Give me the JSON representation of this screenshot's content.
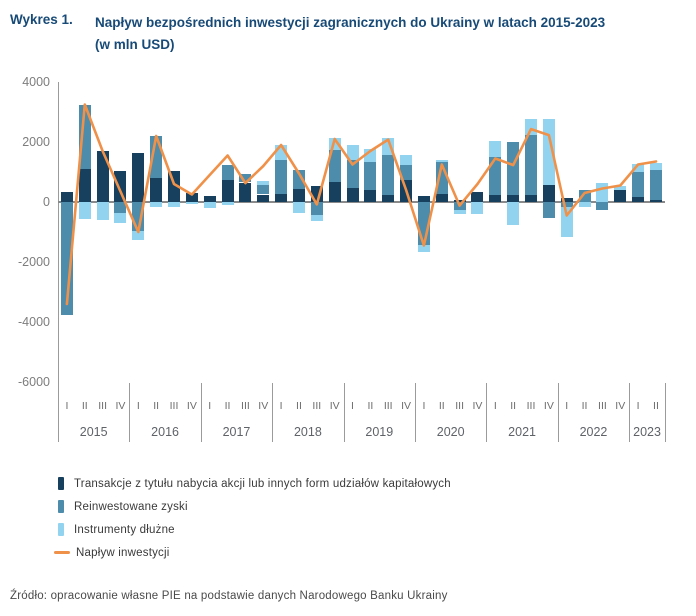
{
  "header": {
    "label": "Wykres 1.",
    "title": "Napływ bezpośrednich inwestycji zagranicznych do Ukrainy w latach 2015-2023",
    "subtitle": "(w mln USD)"
  },
  "source": {
    "text": "Źródło: opracowanie własne PIE na podstawie danych Narodowego Banku Ukrainy"
  },
  "chart_data": {
    "type": "bar",
    "subtype": "stacked-bars-with-line",
    "title": "Napływ bezpośrednich inwestycji zagranicznych do Ukrainy w latach 2015-2023 (w mln USD)",
    "ylabel": "mln USD",
    "ylim": [
      -6000,
      4000
    ],
    "y_ticks": [
      4000,
      2000,
      0,
      -2000,
      -4000,
      -6000
    ],
    "grid": false,
    "legend_position": "bottom",
    "years": [
      {
        "label": "2015",
        "quarters": [
          "I",
          "II",
          "III",
          "IV"
        ]
      },
      {
        "label": "2016",
        "quarters": [
          "I",
          "II",
          "III",
          "IV"
        ]
      },
      {
        "label": "2017",
        "quarters": [
          "I",
          "II",
          "III",
          "IV"
        ]
      },
      {
        "label": "2018",
        "quarters": [
          "I",
          "II",
          "III",
          "IV"
        ]
      },
      {
        "label": "2019",
        "quarters": [
          "I",
          "II",
          "III",
          "IV"
        ]
      },
      {
        "label": "2020",
        "quarters": [
          "I",
          "II",
          "III",
          "IV"
        ]
      },
      {
        "label": "2021",
        "quarters": [
          "I",
          "II",
          "III",
          "IV"
        ]
      },
      {
        "label": "2022",
        "quarters": [
          "I",
          "II",
          "III",
          "IV"
        ]
      },
      {
        "label": "2023",
        "quarters": [
          "I",
          "II"
        ]
      }
    ],
    "series": [
      {
        "name": "Transakcje z tytułu nabycia akcji lub innych form udziałów kapitałowych",
        "color": "#17405e",
        "values": [
          350,
          1100,
          1700,
          1050,
          1650,
          800,
          1050,
          300,
          200,
          750,
          650,
          250,
          270,
          430,
          530,
          680,
          470,
          400,
          230,
          730,
          200,
          270,
          70,
          330,
          250,
          230,
          230,
          570,
          130,
          0,
          0,
          400,
          170,
          70
        ]
      },
      {
        "name": "Reinwestowane zyski",
        "color": "#4d8cab",
        "values": [
          -3750,
          2150,
          0,
          -350,
          -950,
          1400,
          0,
          0,
          0,
          500,
          280,
          330,
          1130,
          630,
          -430,
          1060,
          930,
          940,
          1330,
          500,
          -1430,
          1070,
          -270,
          0,
          1250,
          1760,
          2000,
          -540,
          -150,
          400,
          -250,
          0,
          830,
          1000
        ]
      },
      {
        "name": "Instrumenty dłużne",
        "color": "#92d4f0",
        "values": [
          0,
          -550,
          -600,
          -350,
          -300,
          -150,
          -150,
          -50,
          -200,
          -100,
          0,
          130,
          500,
          -370,
          -200,
          390,
          500,
          440,
          570,
          330,
          -230,
          70,
          -130,
          -400,
          550,
          -770,
          530,
          2200,
          -1000,
          -150,
          620,
          130,
          270,
          230
        ]
      }
    ],
    "line": {
      "name": "Napływ inwestycji",
      "color": "#f0914a",
      "values": [
        -3400,
        3250,
        1700,
        350,
        -1000,
        2200,
        600,
        250,
        900,
        1550,
        630,
        1200,
        1900,
        950,
        -80,
        2100,
        1250,
        1700,
        2080,
        400,
        -1450,
        1250,
        -120,
        600,
        1450,
        1230,
        2430,
        2230,
        -450,
        300,
        450,
        550,
        1250,
        1350
      ]
    }
  }
}
